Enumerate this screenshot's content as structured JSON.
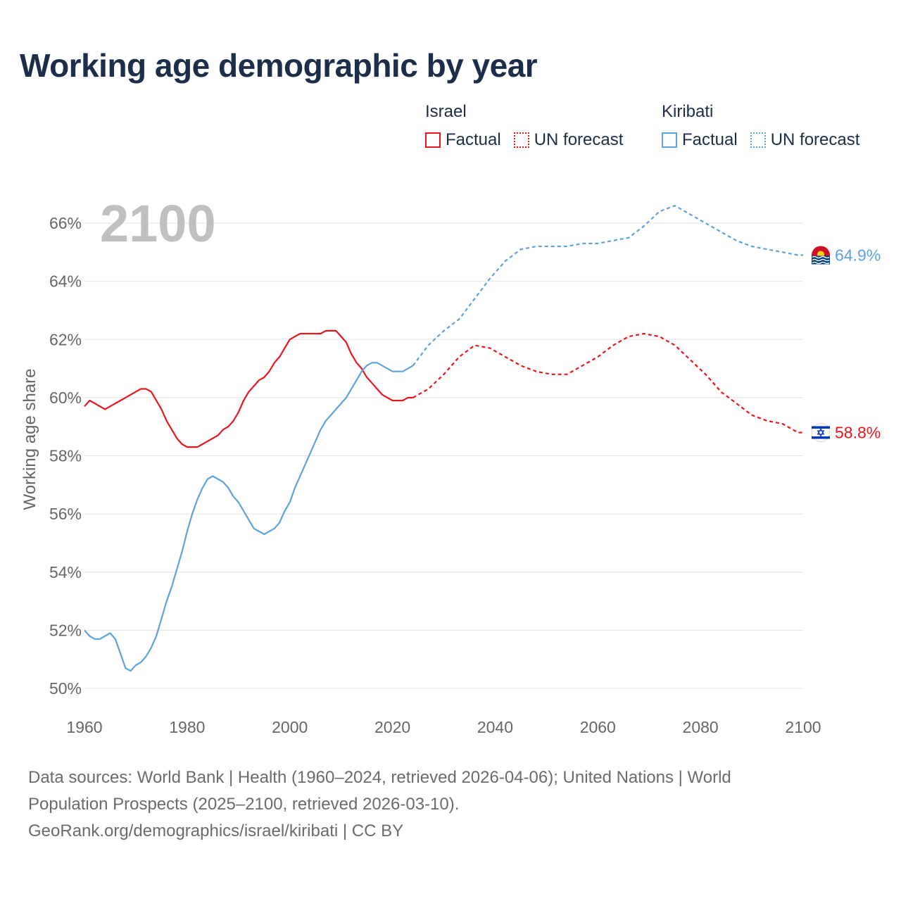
{
  "title": "Working age demographic by year",
  "legend": {
    "groups": [
      {
        "name": "Israel",
        "factual_label": "Factual",
        "forecast_label": "UN forecast",
        "color": "#e8161b"
      },
      {
        "name": "Kiribati",
        "factual_label": "Factual",
        "forecast_label": "UN forecast",
        "color": "#5da2e0"
      }
    ]
  },
  "footer": {
    "line1": "Data sources: World Bank | Health (1960–2024, retrieved 2026-04-06); United Nations | World",
    "line2": "Population Prospects (2025–2100, retrieved 2026-03-10).",
    "line3": "GeoRank.org/demographics/israel/kiribati | CC BY"
  },
  "chart_data": {
    "type": "line",
    "title": "Working age demographic by year",
    "year_overlay": "2100",
    "xlabel": "",
    "ylabel": "Working age share",
    "xlim": [
      1960,
      2100
    ],
    "ylim": [
      50,
      67
    ],
    "x_ticks": [
      1960,
      1980,
      2000,
      2020,
      2040,
      2060,
      2080,
      2100
    ],
    "x_tick_labels": [
      "1960",
      "1980",
      "2000",
      "2020",
      "2040",
      "2060",
      "2080",
      "2100"
    ],
    "y_ticks": [
      50,
      52,
      54,
      56,
      58,
      60,
      62,
      64,
      66
    ],
    "y_tick_labels": [
      "50%",
      "52%",
      "54%",
      "56%",
      "58%",
      "60%",
      "62%",
      "64%",
      "66%"
    ],
    "grid": true,
    "series": [
      {
        "name": "Israel",
        "color": "#e8161b",
        "end_label": "58.8%",
        "factual": {
          "x": [
            1960,
            1961,
            1962,
            1963,
            1964,
            1965,
            1966,
            1967,
            1968,
            1969,
            1970,
            1971,
            1972,
            1973,
            1974,
            1975,
            1976,
            1977,
            1978,
            1979,
            1980,
            1981,
            1982,
            1983,
            1984,
            1985,
            1986,
            1987,
            1988,
            1989,
            1990,
            1991,
            1992,
            1993,
            1994,
            1995,
            1996,
            1997,
            1998,
            1999,
            2000,
            2001,
            2002,
            2003,
            2004,
            2005,
            2006,
            2007,
            2008,
            2009,
            2010,
            2011,
            2012,
            2013,
            2014,
            2015,
            2016,
            2017,
            2018,
            2019,
            2020,
            2021,
            2022,
            2023,
            2024
          ],
          "y": [
            59.7,
            59.9,
            59.8,
            59.7,
            59.6,
            59.7,
            59.8,
            59.9,
            60.0,
            60.1,
            60.2,
            60.3,
            60.3,
            60.2,
            59.9,
            59.6,
            59.2,
            58.9,
            58.6,
            58.4,
            58.3,
            58.3,
            58.3,
            58.4,
            58.5,
            58.6,
            58.7,
            58.9,
            59.0,
            59.2,
            59.5,
            59.9,
            60.2,
            60.4,
            60.6,
            60.7,
            60.9,
            61.2,
            61.4,
            61.7,
            62.0,
            62.1,
            62.2,
            62.2,
            62.2,
            62.2,
            62.2,
            62.3,
            62.3,
            62.3,
            62.1,
            61.9,
            61.5,
            61.2,
            61.0,
            60.7,
            60.5,
            60.3,
            60.1,
            60.0,
            59.9,
            59.9,
            59.9,
            60.0,
            60.0
          ]
        },
        "forecast": {
          "x": [
            2024,
            2027,
            2030,
            2033,
            2036,
            2039,
            2042,
            2045,
            2048,
            2051,
            2054,
            2057,
            2060,
            2063,
            2066,
            2069,
            2072,
            2075,
            2078,
            2081,
            2084,
            2087,
            2090,
            2093,
            2096,
            2099,
            2100
          ],
          "y": [
            60.0,
            60.3,
            60.8,
            61.4,
            61.8,
            61.7,
            61.4,
            61.1,
            60.9,
            60.8,
            60.8,
            61.1,
            61.4,
            61.8,
            62.1,
            62.2,
            62.1,
            61.8,
            61.3,
            60.8,
            60.2,
            59.8,
            59.4,
            59.2,
            59.1,
            58.8,
            58.8
          ]
        }
      },
      {
        "name": "Kiribati",
        "color": "#5da2e0",
        "end_label": "64.9%",
        "factual": {
          "x": [
            1960,
            1961,
            1962,
            1963,
            1964,
            1965,
            1966,
            1967,
            1968,
            1969,
            1970,
            1971,
            1972,
            1973,
            1974,
            1975,
            1976,
            1977,
            1978,
            1979,
            1980,
            1981,
            1982,
            1983,
            1984,
            1985,
            1986,
            1987,
            1988,
            1989,
            1990,
            1991,
            1992,
            1993,
            1994,
            1995,
            1996,
            1997,
            1998,
            1999,
            2000,
            2001,
            2002,
            2003,
            2004,
            2005,
            2006,
            2007,
            2008,
            2009,
            2010,
            2011,
            2012,
            2013,
            2014,
            2015,
            2016,
            2017,
            2018,
            2019,
            2020,
            2021,
            2022,
            2023,
            2024
          ],
          "y": [
            52.0,
            51.8,
            51.7,
            51.7,
            51.8,
            51.9,
            51.7,
            51.2,
            50.7,
            50.6,
            50.8,
            50.9,
            51.1,
            51.4,
            51.8,
            52.4,
            53.0,
            53.5,
            54.1,
            54.7,
            55.4,
            56.0,
            56.5,
            56.9,
            57.2,
            57.3,
            57.2,
            57.1,
            56.9,
            56.6,
            56.4,
            56.1,
            55.8,
            55.5,
            55.4,
            55.3,
            55.4,
            55.5,
            55.7,
            56.1,
            56.4,
            56.9,
            57.3,
            57.7,
            58.1,
            58.5,
            58.9,
            59.2,
            59.4,
            59.6,
            59.8,
            60.0,
            60.3,
            60.6,
            60.9,
            61.1,
            61.2,
            61.2,
            61.1,
            61.0,
            60.9,
            60.9,
            60.9,
            61.0,
            61.1
          ]
        },
        "forecast": {
          "x": [
            2024,
            2027,
            2030,
            2033,
            2036,
            2039,
            2042,
            2045,
            2048,
            2051,
            2054,
            2057,
            2060,
            2063,
            2066,
            2069,
            2072,
            2075,
            2078,
            2081,
            2084,
            2087,
            2090,
            2093,
            2096,
            2099,
            2100
          ],
          "y": [
            61.1,
            61.8,
            62.3,
            62.7,
            63.4,
            64.1,
            64.7,
            65.1,
            65.2,
            65.2,
            65.2,
            65.3,
            65.3,
            65.4,
            65.5,
            65.9,
            66.4,
            66.6,
            66.3,
            66.0,
            65.7,
            65.4,
            65.2,
            65.1,
            65.0,
            64.9,
            64.9
          ]
        }
      }
    ]
  }
}
